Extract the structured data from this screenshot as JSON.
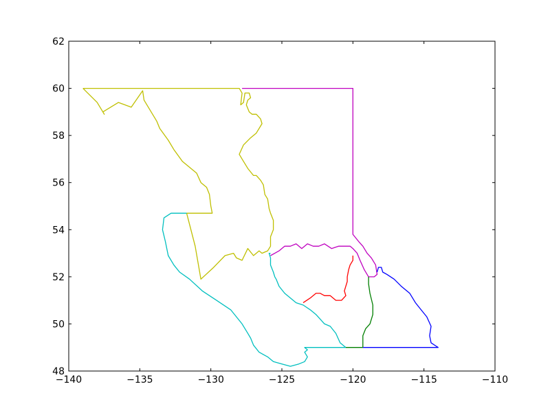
{
  "chart_data": {
    "type": "line",
    "title": "",
    "xlabel": "",
    "ylabel": "",
    "xlim": [
      -140,
      -110
    ],
    "ylim": [
      48,
      62
    ],
    "xticks": [
      -140,
      -135,
      -130,
      -125,
      -120,
      -115,
      -110
    ],
    "yticks": [
      48,
      50,
      52,
      54,
      56,
      58,
      60,
      62
    ],
    "xtick_labels": [
      "−140",
      "−135",
      "−130",
      "−125",
      "−120",
      "−115",
      "−110"
    ],
    "ytick_labels": [
      "48",
      "50",
      "52",
      "54",
      "56",
      "58",
      "60",
      "62"
    ],
    "grid": false,
    "legend": "none",
    "series": [
      {
        "color": "#bfbf00",
        "x": [
          -139.0,
          -138.0,
          -137.5,
          -137.6,
          -136.5,
          -135.6,
          -134.8,
          -134.7,
          -134.2,
          -133.8,
          -133.6,
          -133.0,
          -132.6,
          -132.0,
          -131.0,
          -130.7,
          -130.3,
          -130.1,
          -130.0,
          -129.9,
          -130.1,
          -130.5,
          -131.0,
          -131.7,
          -131.1,
          -130.7,
          -129.8,
          -129.0,
          -128.4,
          -128.2,
          -127.8,
          -127.4,
          -127.0,
          -126.6,
          -126.4,
          -126.0,
          -125.8,
          -125.8,
          -125.6,
          -125.6,
          -125.8,
          -125.9,
          -126.0,
          -126.2,
          -126.3,
          -126.5,
          -126.8,
          -127.0,
          -127.4,
          -127.8,
          -128.0,
          -127.7,
          -127.2,
          -126.8,
          -126.4,
          -126.5,
          -126.8,
          -127.1,
          -127.3,
          -127.5,
          -127.4,
          -127.2,
          -127.3,
          -127.6,
          -127.7,
          -127.9,
          -127.8,
          -128.0,
          -138.0,
          -139.0
        ],
        "y": [
          60.0,
          59.4,
          58.9,
          59.0,
          59.4,
          59.2,
          59.9,
          59.5,
          59.0,
          58.6,
          58.3,
          57.8,
          57.4,
          56.9,
          56.4,
          56.0,
          55.8,
          55.5,
          55.0,
          54.7,
          54.7,
          54.7,
          54.7,
          54.7,
          53.3,
          51.9,
          52.4,
          52.9,
          53.0,
          52.8,
          52.7,
          53.2,
          52.9,
          53.1,
          53.0,
          53.1,
          53.3,
          53.7,
          54.0,
          54.4,
          54.7,
          54.9,
          55.3,
          55.5,
          55.9,
          56.1,
          56.3,
          56.3,
          56.6,
          57.0,
          57.2,
          57.6,
          57.9,
          58.1,
          58.5,
          58.7,
          58.9,
          58.9,
          59.0,
          59.3,
          59.5,
          59.6,
          59.8,
          59.8,
          59.4,
          59.3,
          59.8,
          60.0,
          60.0,
          60.0
        ]
      },
      {
        "color": "#00bfbf",
        "x": [
          -131.7,
          -132.8,
          -133.3,
          -133.4,
          -133.2,
          -133.0,
          -132.6,
          -132.2,
          -131.5,
          -130.6,
          -129.6,
          -128.6,
          -127.8,
          -127.4,
          -127.2,
          -127.0,
          -126.6,
          -126.0,
          -125.6,
          -125.0,
          -124.4,
          -123.8,
          -123.4,
          -123.2,
          -123.4,
          -123.2,
          -123.4,
          -122.0,
          -120.5,
          -120.9,
          -121.2,
          -121.6,
          -122.0,
          -122.3,
          -122.6,
          -123.0,
          -123.5,
          -124.0,
          -124.4,
          -124.8,
          -125.2,
          -125.4,
          -125.5,
          -125.6,
          -125.8,
          -125.8,
          -125.9,
          -125.8
        ],
        "y": [
          54.7,
          54.7,
          54.5,
          54.0,
          53.5,
          52.9,
          52.5,
          52.2,
          51.9,
          51.4,
          51.0,
          50.6,
          50.0,
          49.6,
          49.4,
          49.1,
          48.8,
          48.6,
          48.4,
          48.3,
          48.2,
          48.3,
          48.4,
          48.6,
          48.8,
          48.9,
          49.0,
          49.0,
          49.0,
          49.2,
          49.6,
          49.9,
          50.0,
          50.2,
          50.4,
          50.6,
          50.8,
          50.9,
          51.1,
          51.3,
          51.6,
          51.9,
          52.0,
          52.2,
          52.5,
          52.8,
          53.0,
          53.0
        ]
      },
      {
        "color": "#bf00bf",
        "x": [
          -127.8,
          -120.0,
          -120.0,
          -119.6,
          -119.3,
          -119.0,
          -118.7,
          -118.4,
          -118.3,
          -118.5,
          -118.9,
          -119.2,
          -119.5,
          -119.7,
          -120.0,
          -120.2,
          -120.6,
          -121.0,
          -121.5,
          -122.0,
          -122.4,
          -122.8,
          -123.2,
          -123.6,
          -124.0,
          -124.4,
          -124.8,
          -125.2,
          -125.5,
          -125.8
        ],
        "y": [
          60.0,
          60.0,
          53.8,
          53.5,
          53.3,
          53.0,
          52.8,
          52.5,
          52.1,
          52.0,
          52.0,
          52.3,
          52.7,
          53.0,
          53.2,
          53.3,
          53.3,
          53.3,
          53.2,
          53.4,
          53.3,
          53.3,
          53.4,
          53.2,
          53.4,
          53.3,
          53.3,
          53.1,
          53.0,
          52.9
        ]
      },
      {
        "color": "#ff0000",
        "x": [
          -123.5,
          -123.0,
          -122.6,
          -122.3,
          -122.0,
          -121.6,
          -121.2,
          -120.8,
          -120.5,
          -120.6,
          -120.4,
          -120.4,
          -120.3,
          -120.2,
          -120.0,
          -120.0
        ],
        "y": [
          50.9,
          51.1,
          51.3,
          51.3,
          51.2,
          51.2,
          51.0,
          51.0,
          51.2,
          51.4,
          51.8,
          52.0,
          52.3,
          52.5,
          52.7,
          52.9
        ]
      },
      {
        "color": "#007f00",
        "x": [
          -120.5,
          -119.3,
          -119.3,
          -119.1,
          -118.8,
          -118.6,
          -118.6,
          -118.8,
          -118.9,
          -118.9
        ],
        "y": [
          49.0,
          49.0,
          49.5,
          49.8,
          50.0,
          50.4,
          50.8,
          51.3,
          51.7,
          52.0
        ]
      },
      {
        "color": "#0000ff",
        "x": [
          -119.3,
          -114.0,
          -114.5,
          -114.6,
          -114.5,
          -114.8,
          -115.2,
          -115.6,
          -116.0,
          -116.6,
          -117.1,
          -117.6,
          -117.9,
          -118.0,
          -118.2,
          -118.3
        ],
        "y": [
          49.0,
          49.0,
          49.2,
          49.5,
          49.9,
          50.3,
          50.6,
          50.9,
          51.3,
          51.6,
          51.9,
          52.1,
          52.2,
          52.4,
          52.4,
          52.2
        ]
      }
    ]
  }
}
